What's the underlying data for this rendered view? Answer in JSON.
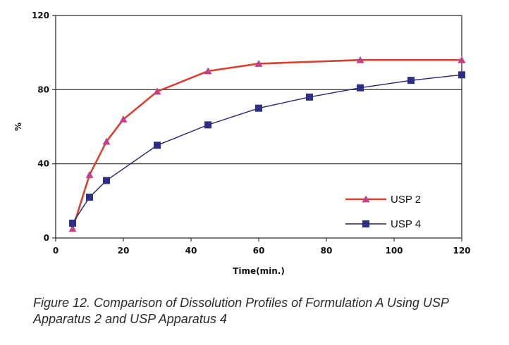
{
  "chart_data": {
    "type": "line",
    "title": "",
    "xlabel": "Time(min.)",
    "ylabel": "%",
    "xlim": [
      0,
      120
    ],
    "ylim": [
      0,
      120
    ],
    "x_ticks": [
      0,
      20,
      40,
      60,
      80,
      100,
      120
    ],
    "y_ticks": [
      0,
      40,
      80,
      120
    ],
    "grid": "horizontal",
    "legend_position": "bottom-right",
    "series": [
      {
        "name": "USP 2",
        "color": "#d9412f",
        "marker": "triangle",
        "marker_color": "#c0408a",
        "x": [
          5,
          10,
          15,
          20,
          30,
          45,
          60,
          90,
          120
        ],
        "y": [
          5,
          34,
          52,
          64,
          79,
          90,
          94,
          96,
          96
        ]
      },
      {
        "name": "USP 4",
        "color": "#24246e",
        "marker": "square",
        "marker_color": "#2e2e82",
        "x": [
          5,
          10,
          15,
          30,
          45,
          60,
          75,
          90,
          105,
          120
        ],
        "y": [
          8,
          22,
          31,
          50,
          61,
          70,
          76,
          81,
          85,
          88
        ]
      }
    ]
  },
  "caption": "Figure 12. Comparison of Dissolution Profiles of Formulation A Using USP Apparatus 2 and USP Apparatus 4"
}
